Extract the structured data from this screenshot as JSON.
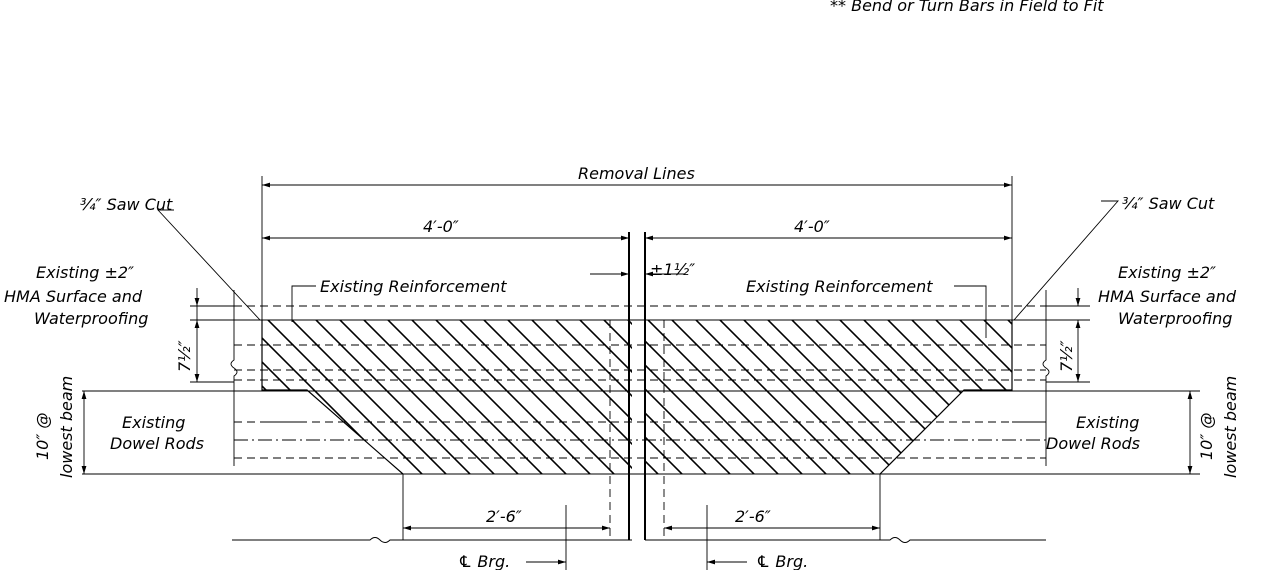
{
  "note": "** Bend or Turn Bars in Field to Fit",
  "dims": {
    "removal_lines": "Removal Lines",
    "left_width": "4′-0″",
    "right_width": "4′-0″",
    "joint": "±1½″",
    "left_bottom": "2′-6″",
    "right_bottom": "2′-6″",
    "left_depth": "7½″",
    "right_depth": "7½″"
  },
  "labels": {
    "saw_cut_left": "¾″ Saw Cut",
    "saw_cut_right": "¾″ Saw Cut",
    "hma_left_1": "Existing ±2″",
    "hma_left_2": "HMA Surface and",
    "hma_left_3": "Waterproofing",
    "hma_right_1": "Existing ±2″",
    "hma_right_2": "HMA Surface and",
    "hma_right_3": "Waterproofing",
    "reinf_left": "Existing Reinforcement",
    "reinf_right": "Existing Reinforcement",
    "dowel_left_1": "Existing",
    "dowel_left_2": "Dowel Rods",
    "dowel_right_1": "Existing",
    "dowel_right_2": "Dowel Rods",
    "beam_left_1": "10″ @",
    "beam_left_2": "lowest beam",
    "beam_right_1": "10″ @",
    "beam_right_2": "lowest beam",
    "brg_left": "℄ Brg.",
    "brg_right": "℄ Brg."
  }
}
